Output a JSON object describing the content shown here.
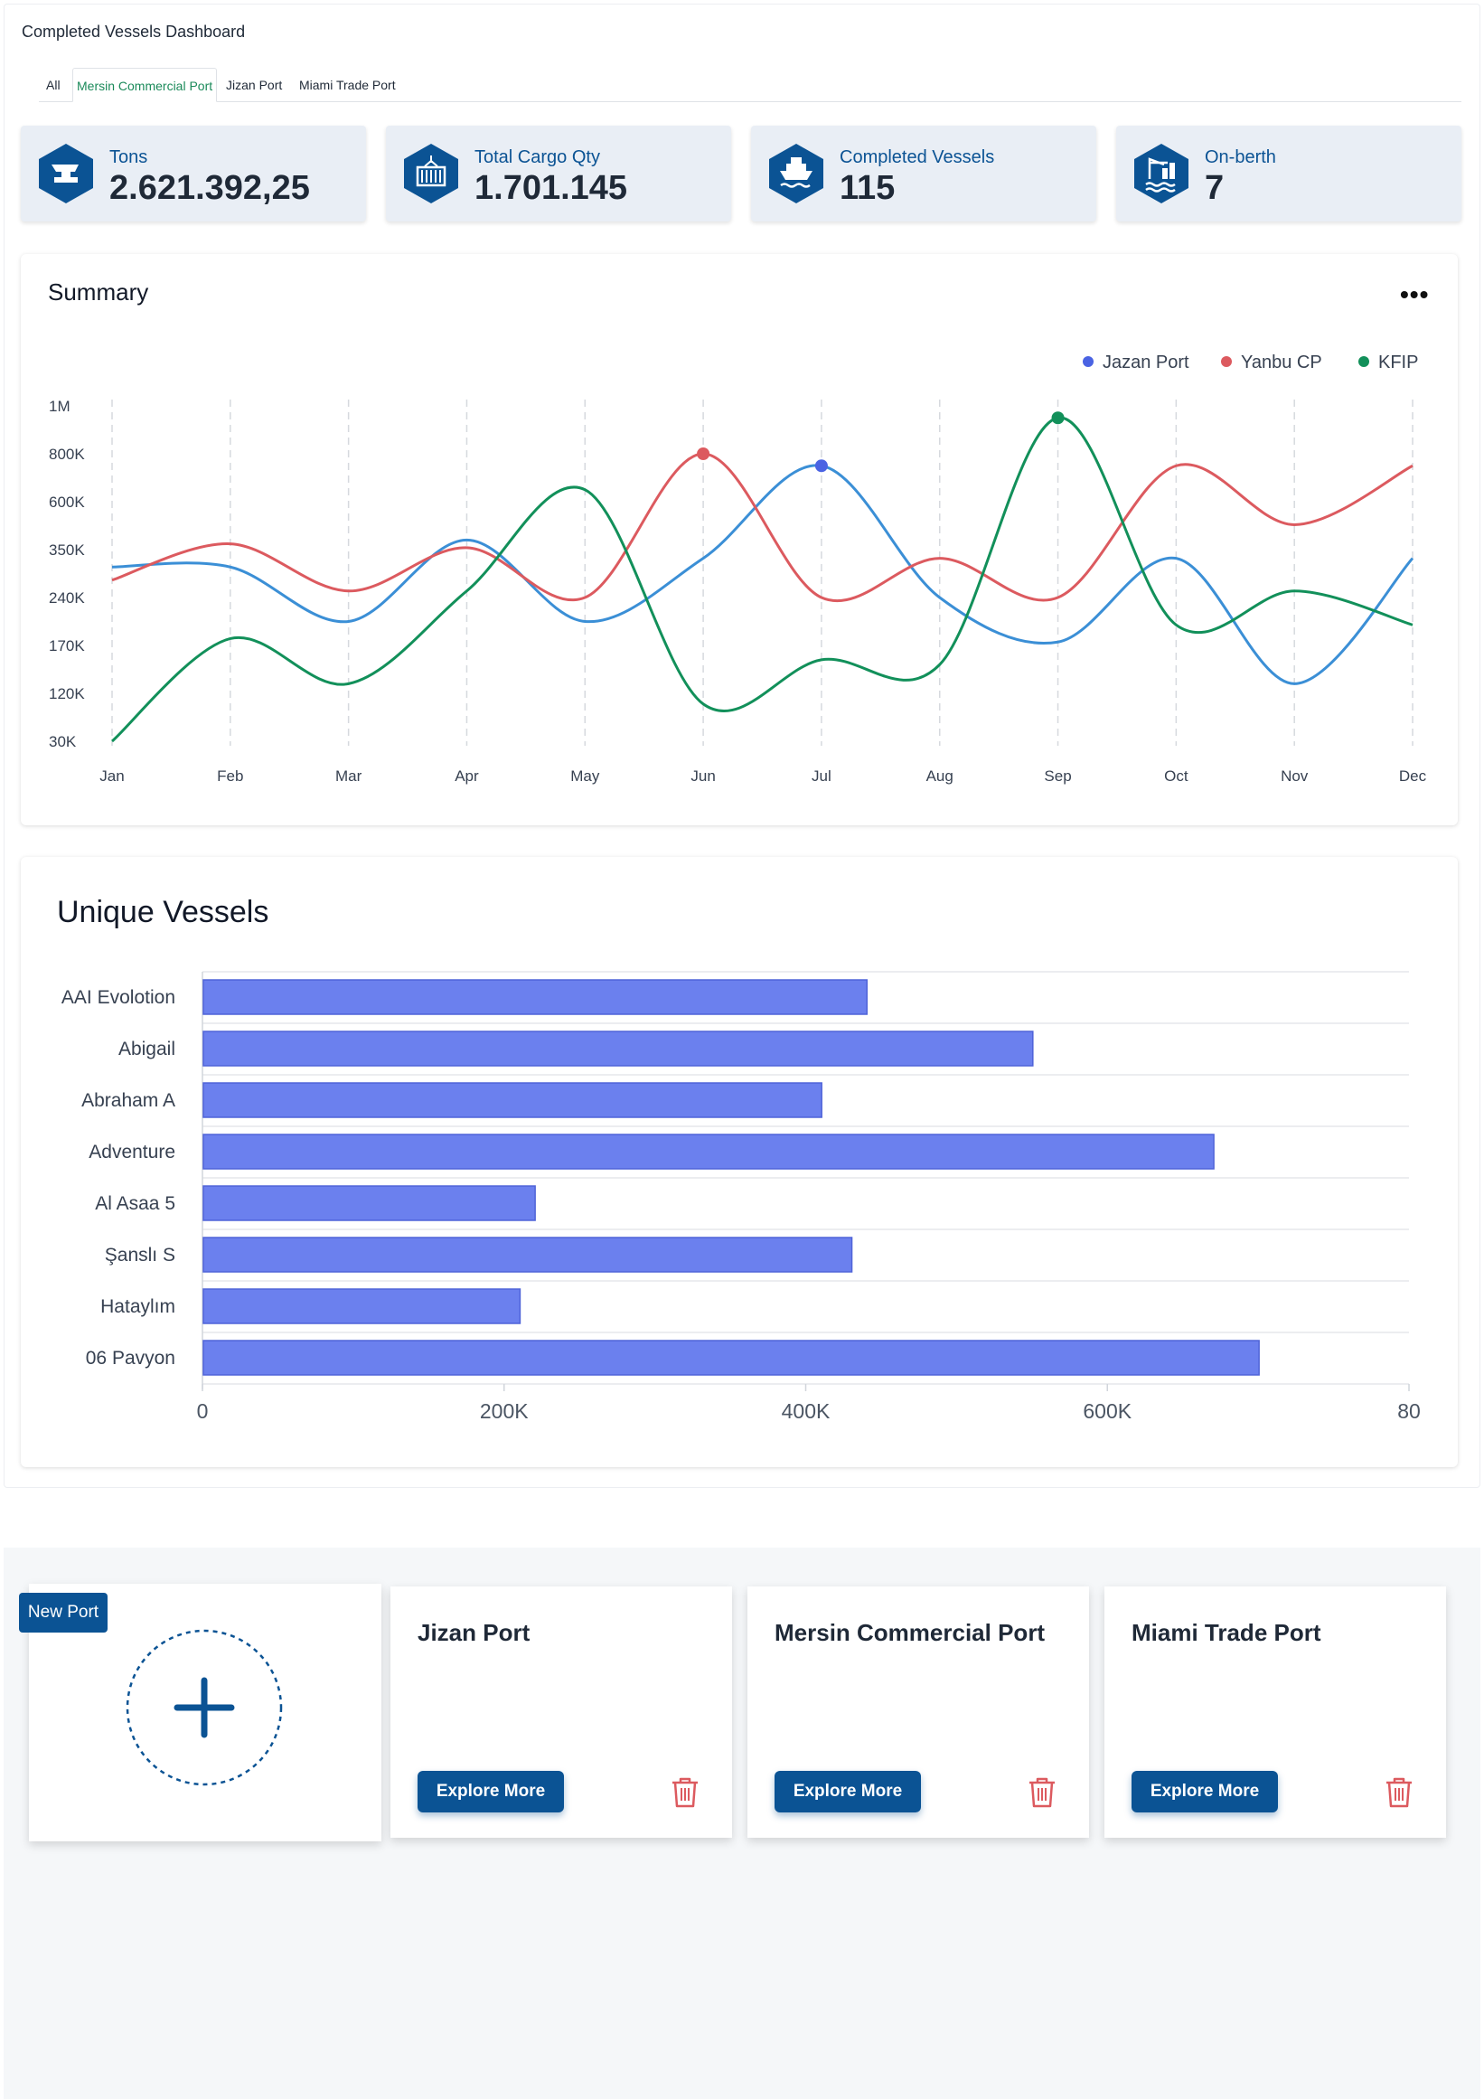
{
  "dashboard": {
    "title": "Completed Vessels Dashboard",
    "tabs": [
      {
        "label": "All",
        "active": false
      },
      {
        "label": "Mersin Commercial Port",
        "active": true
      },
      {
        "label": "Jizan Port",
        "active": false
      },
      {
        "label": "Miami Trade Port",
        "active": false
      }
    ]
  },
  "kpis": [
    {
      "label": "Tons",
      "value": "2.621.392,25",
      "icon": "anvil-icon"
    },
    {
      "label": "Total Cargo Qty",
      "value": "1.701.145",
      "icon": "container-icon"
    },
    {
      "label": "Completed Vessels",
      "value": "115",
      "icon": "ship-icon"
    },
    {
      "label": "On-berth",
      "value": "7",
      "icon": "crane-icon"
    }
  ],
  "colors": {
    "brand": "#0b5394",
    "jazan": "#3b8fd6",
    "yanbu": "#dc5a5f",
    "kfip": "#12905a",
    "bar": "#6b80ee",
    "active_tab": "#1b8a5a"
  },
  "summary": {
    "title": "Summary",
    "menu_label": "•••",
    "legend": [
      {
        "name": "Jazan Port",
        "dot_color": "#4a63e3"
      },
      {
        "name": "Yanbu CP",
        "dot_color": "#dc5a5f"
      },
      {
        "name": "KFIP",
        "dot_color": "#12905a"
      }
    ]
  },
  "unique_vessels": {
    "title": "Unique Vessels"
  },
  "chart_data": [
    {
      "type": "line",
      "title": "Summary",
      "x": [
        "Jan",
        "Feb",
        "Mar",
        "Apr",
        "May",
        "Jun",
        "Jul",
        "Aug",
        "Sep",
        "Oct",
        "Nov",
        "Dec"
      ],
      "y_ticks": [
        "30K",
        "120K",
        "170K",
        "240K",
        "350K",
        "600K",
        "800K",
        "1M"
      ],
      "series": [
        {
          "name": "Jazan Port",
          "values": [
            310000,
            310000,
            205000,
            400000,
            205000,
            330000,
            750000,
            240000,
            175000,
            330000,
            130000,
            330000
          ]
        },
        {
          "name": "Yanbu CP",
          "values": [
            280000,
            380000,
            255000,
            360000,
            240000,
            800000,
            240000,
            330000,
            240000,
            750000,
            480000,
            750000
          ]
        },
        {
          "name": "KFIP",
          "values": [
            30000,
            180000,
            130000,
            255000,
            650000,
            100000,
            155000,
            150000,
            950000,
            200000,
            255000,
            200000
          ]
        }
      ],
      "highlighted_points": [
        {
          "series": "Yanbu CP",
          "x": "Jun",
          "value": 800000
        },
        {
          "series": "Jazan Port",
          "x": "Jul",
          "value": 750000
        },
        {
          "series": "KFIP",
          "x": "Sep",
          "value": 950000
        }
      ],
      "legend": "top-right",
      "grid": "vertical dashed"
    },
    {
      "type": "bar",
      "orientation": "horizontal",
      "title": "Unique Vessels",
      "categories": [
        "AAI Evolotion",
        "Abigail",
        "Abraham A",
        "Adventure",
        "Al Asaa 5",
        "Şanslı S",
        "Hataylım",
        "06 Pavyon"
      ],
      "values": [
        440000,
        550000,
        410000,
        670000,
        220000,
        430000,
        210000,
        700000
      ],
      "x_ticks": [
        "0",
        "200K",
        "400K",
        "600K",
        "80"
      ],
      "xlim": [
        0,
        800000
      ]
    }
  ],
  "ports": {
    "new_port_label": "New Port",
    "explore_label": "Explore More",
    "cards": [
      {
        "name": "Jizan Port"
      },
      {
        "name": "Mersin Commercial Port"
      },
      {
        "name": "Miami Trade Port"
      }
    ]
  }
}
